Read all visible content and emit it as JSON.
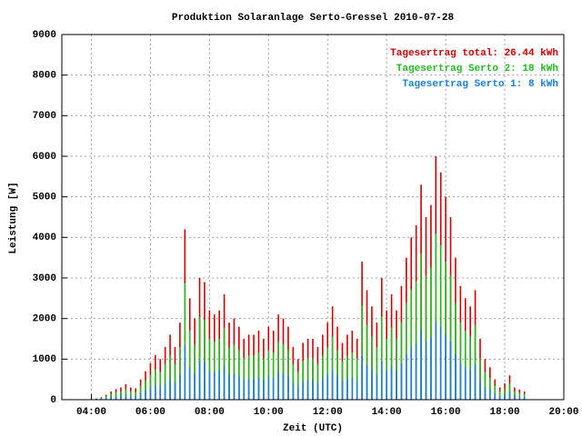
{
  "chart_data": {
    "type": "impulse",
    "title": "Produktion Solaranlage Serto-Gressel 2010-07-28",
    "x_label": "Zeit (UTC)",
    "y_label": "Leistung [W]",
    "xlim": [
      180,
      1200
    ],
    "xticks": [
      {
        "value": 240,
        "label": "04:00"
      },
      {
        "value": 360,
        "label": "06:00"
      },
      {
        "value": 480,
        "label": "08:00"
      },
      {
        "value": 600,
        "label": "10:00"
      },
      {
        "value": 720,
        "label": "12:00"
      },
      {
        "value": 840,
        "label": "14:00"
      },
      {
        "value": 960,
        "label": "16:00"
      },
      {
        "value": 1080,
        "label": "18:00"
      },
      {
        "value": 1200,
        "label": "20:00"
      }
    ],
    "ylim": [
      0,
      9000
    ],
    "yticks": [
      0,
      1000,
      2000,
      3000,
      4000,
      5000,
      6000,
      7000,
      8000,
      9000
    ],
    "grid": true,
    "legend": "top-right",
    "x": [
      240,
      250,
      260,
      270,
      280,
      290,
      300,
      310,
      320,
      330,
      340,
      350,
      360,
      370,
      380,
      390,
      400,
      410,
      420,
      430,
      440,
      450,
      460,
      470,
      480,
      490,
      500,
      510,
      520,
      530,
      540,
      550,
      560,
      570,
      580,
      590,
      600,
      610,
      620,
      630,
      640,
      650,
      660,
      670,
      680,
      690,
      700,
      710,
      720,
      730,
      740,
      750,
      760,
      770,
      780,
      790,
      800,
      810,
      820,
      830,
      840,
      850,
      860,
      870,
      880,
      890,
      900,
      910,
      920,
      930,
      940,
      950,
      960,
      970,
      980,
      990,
      1000,
      1010,
      1020,
      1030,
      1040,
      1050,
      1060,
      1070,
      1080,
      1090,
      1100,
      1110,
      1120
    ],
    "series": [
      {
        "name": "Tagesertrag total: 26.44 kWh",
        "color": "#cc0000",
        "values": [
          10,
          30,
          60,
          120,
          200,
          260,
          300,
          380,
          300,
          280,
          500,
          700,
          900,
          1100,
          1000,
          1300,
          1600,
          1300,
          1900,
          4200,
          2500,
          2000,
          3000,
          2900,
          2200,
          2100,
          2200,
          2600,
          1900,
          2000,
          1800,
          1500,
          1600,
          1600,
          1700,
          1500,
          1800,
          1700,
          2100,
          2000,
          1800,
          1300,
          1000,
          1400,
          1500,
          1500,
          1300,
          1600,
          1900,
          2300,
          1800,
          1400,
          1600,
          1700,
          1500,
          3400,
          2700,
          2300,
          1900,
          3000,
          2200,
          2600,
          2200,
          2800,
          3500,
          4000,
          4300,
          5300,
          4500,
          4800,
          6000,
          5600,
          5000,
          4500,
          3500,
          2800,
          2500,
          2300,
          2700,
          1500,
          1000,
          800,
          500,
          300,
          400,
          600,
          300,
          250,
          200
        ]
      },
      {
        "name": "Tagesertrag Serto 2: 18 kWh",
        "color": "#22bb22",
        "values": [
          10,
          20,
          40,
          80,
          140,
          180,
          200,
          260,
          200,
          190,
          340,
          480,
          610,
          750,
          680,
          880,
          1090,
          880,
          1290,
          2860,
          1700,
          1360,
          2040,
          1970,
          1500,
          1430,
          1500,
          1770,
          1290,
          1360,
          1220,
          1020,
          1090,
          1090,
          1160,
          1020,
          1220,
          1160,
          1430,
          1360,
          1220,
          880,
          680,
          950,
          1020,
          1020,
          880,
          1090,
          1290,
          1560,
          1220,
          950,
          1090,
          1160,
          1020,
          2310,
          1840,
          1560,
          1290,
          2040,
          1500,
          1770,
          1500,
          1900,
          2380,
          2720,
          2920,
          3600,
          3060,
          3260,
          4080,
          3810,
          3400,
          3060,
          2380,
          1900,
          1700,
          1560,
          1840,
          1020,
          680,
          540,
          340,
          200,
          270,
          410,
          200,
          170,
          140
        ]
      },
      {
        "name": "Tagesertrag Serto 1: 8 kWh",
        "color": "#1a7fdd",
        "values": [
          0,
          10,
          20,
          40,
          60,
          80,
          100,
          120,
          100,
          90,
          160,
          220,
          290,
          350,
          320,
          420,
          510,
          420,
          610,
          1340,
          800,
          640,
          960,
          930,
          700,
          670,
          700,
          830,
          610,
          640,
          580,
          480,
          510,
          510,
          540,
          480,
          580,
          540,
          670,
          640,
          580,
          420,
          320,
          450,
          480,
          480,
          420,
          510,
          610,
          740,
          580,
          450,
          510,
          540,
          480,
          1090,
          860,
          740,
          610,
          960,
          700,
          830,
          700,
          900,
          1120,
          1280,
          1380,
          1700,
          1440,
          1540,
          1920,
          1790,
          1600,
          1440,
          1120,
          900,
          800,
          740,
          860,
          480,
          320,
          260,
          160,
          100,
          130,
          190,
          100,
          80,
          60
        ]
      }
    ]
  }
}
